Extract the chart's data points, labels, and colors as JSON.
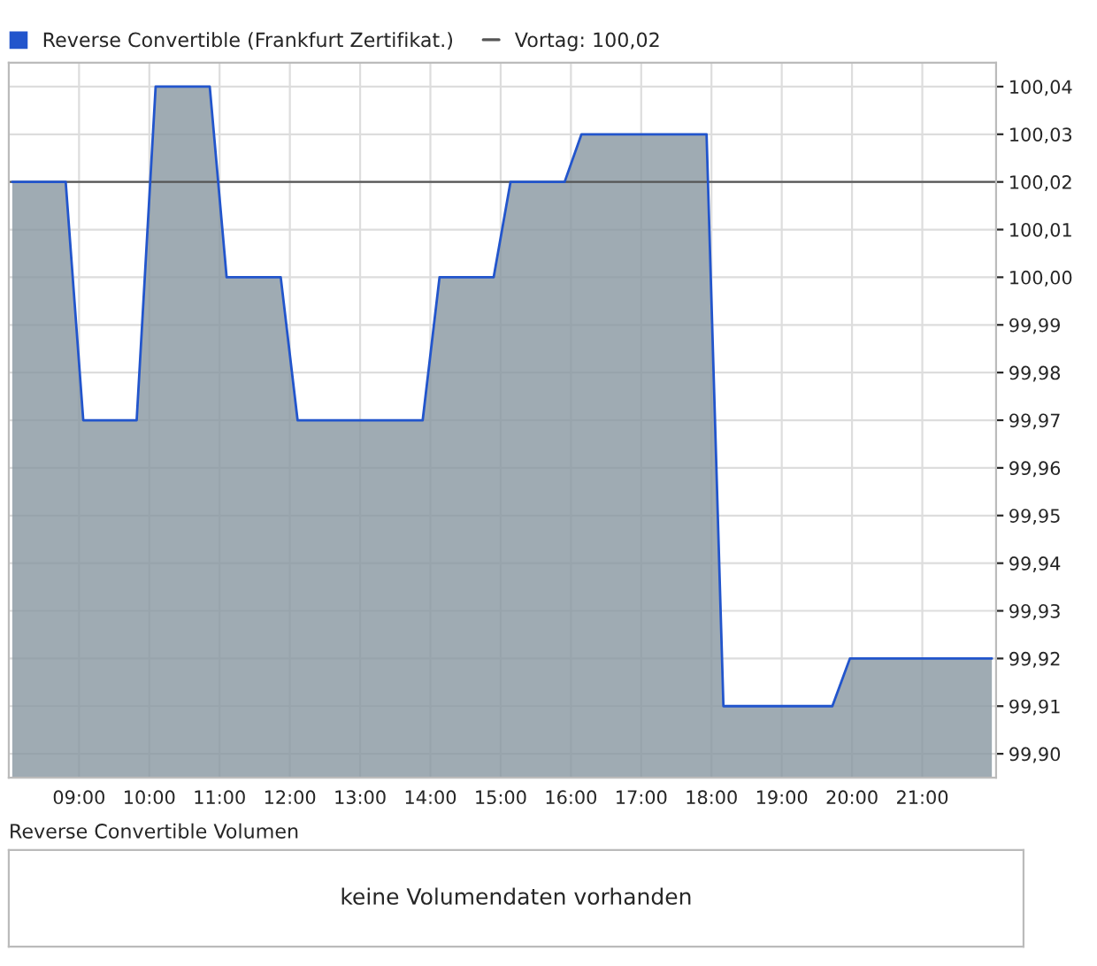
{
  "chart_data": [
    {
      "type": "area",
      "x": [
        8.05,
        8.81,
        9.06,
        9.82,
        10.09,
        10.86,
        11.1,
        11.87,
        12.11,
        13.89,
        14.13,
        14.9,
        15.14,
        15.91,
        16.15,
        17.93,
        18.17,
        19.72,
        19.97,
        21.99
      ],
      "series": [
        {
          "name": "Reverse Convertible (Frankfurt Zertifikat.)",
          "color": "#2255cc",
          "values": [
            100.02,
            100.02,
            99.97,
            99.97,
            100.04,
            100.04,
            100.0,
            100.0,
            99.97,
            99.97,
            100.0,
            100.0,
            100.02,
            100.02,
            100.03,
            100.03,
            99.91,
            99.91,
            99.92,
            99.92
          ]
        }
      ],
      "ref_lines": [
        {
          "axis": "y",
          "value": 100.02,
          "label": "Vortag: 100,02",
          "color": "#555555"
        }
      ],
      "xlim": [
        8.0,
        22.05
      ],
      "xticks": [
        {
          "value": 9,
          "label": "09:00"
        },
        {
          "value": 10,
          "label": "10:00"
        },
        {
          "value": 11,
          "label": "11:00"
        },
        {
          "value": 12,
          "label": "12:00"
        },
        {
          "value": 13,
          "label": "13:00"
        },
        {
          "value": 14,
          "label": "14:00"
        },
        {
          "value": 15,
          "label": "15:00"
        },
        {
          "value": 16,
          "label": "16:00"
        },
        {
          "value": 17,
          "label": "17:00"
        },
        {
          "value": 18,
          "label": "18:00"
        },
        {
          "value": 19,
          "label": "19:00"
        },
        {
          "value": 20,
          "label": "20:00"
        },
        {
          "value": 21,
          "label": "21:00"
        }
      ],
      "ylim": [
        99.895,
        100.045
      ],
      "yticks": [
        {
          "value": 99.9,
          "label": "99,90"
        },
        {
          "value": 99.91,
          "label": "99,91"
        },
        {
          "value": 99.92,
          "label": "99,92"
        },
        {
          "value": 99.93,
          "label": "99,93"
        },
        {
          "value": 99.94,
          "label": "99,94"
        },
        {
          "value": 99.95,
          "label": "99,95"
        },
        {
          "value": 99.96,
          "label": "99,96"
        },
        {
          "value": 99.97,
          "label": "99,97"
        },
        {
          "value": 99.98,
          "label": "99,98"
        },
        {
          "value": 99.99,
          "label": "99,99"
        },
        {
          "value": 100.0,
          "label": "100,00"
        },
        {
          "value": 100.01,
          "label": "100,01"
        },
        {
          "value": 100.02,
          "label": "100,02"
        },
        {
          "value": 100.03,
          "label": "100,03"
        },
        {
          "value": 100.04,
          "label": "100,04"
        }
      ],
      "grid": true,
      "legend": "top left"
    },
    {
      "type": "other",
      "title": "Reverse Convertible Volumen",
      "annotations": [
        "keine Volumendaten vorhanden"
      ]
    }
  ]
}
